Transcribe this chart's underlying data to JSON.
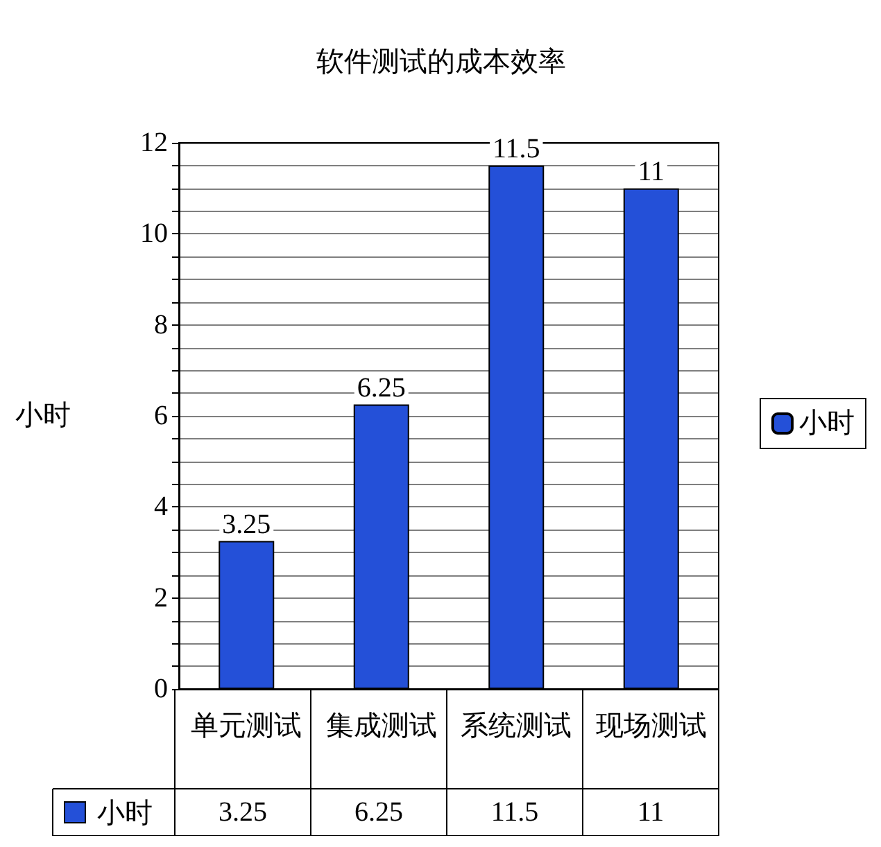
{
  "chart_data": {
    "type": "bar",
    "title": "软件测试的成本效率",
    "ylabel": "小时",
    "categories": [
      "单元测试",
      "集成测试",
      "系统测试",
      "现场测试"
    ],
    "series": [
      {
        "name": "小时",
        "color": "#2450d8",
        "values": [
          3.25,
          6.25,
          11.5,
          11
        ],
        "value_labels": [
          "3.25",
          "6.25",
          "11.5",
          "11"
        ]
      }
    ],
    "ylim": [
      0,
      12
    ],
    "yticks": [
      0,
      {
        "value": 0.5,
        "label": null
      },
      {
        "value": 1,
        "label": null
      },
      {
        "value": 1.5,
        "label": null
      },
      2,
      {
        "value": 2.5,
        "label": null
      },
      {
        "value": 3,
        "label": null
      },
      {
        "value": 3.5,
        "label": null
      },
      4,
      {
        "value": 4.5,
        "label": null
      },
      {
        "value": 5,
        "label": null
      },
      {
        "value": 5.5,
        "label": null
      },
      6,
      {
        "value": 6.5,
        "label": null
      },
      {
        "value": 7,
        "label": null
      },
      {
        "value": 7.5,
        "label": null
      },
      8,
      {
        "value": 8.5,
        "label": null
      },
      {
        "value": 9,
        "label": null
      },
      {
        "value": 9.5,
        "label": null
      },
      10,
      {
        "value": 10.5,
        "label": null
      },
      {
        "value": 11,
        "label": null
      },
      {
        "value": 11.5,
        "label": null
      },
      12
    ],
    "annotations": [
      "3.25",
      "6.25",
      "11.5",
      "11"
    ],
    "grid": "y",
    "legend": "right"
  }
}
